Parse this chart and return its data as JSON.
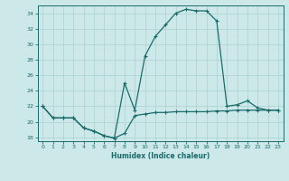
{
  "xlabel": "Humidex (Indice chaleur)",
  "bg_color": "#cce8e8",
  "grid_color": "#b0d4d4",
  "line_color": "#1a6b6b",
  "xlim": [
    -0.5,
    23.5
  ],
  "ylim": [
    17.5,
    35.0
  ],
  "yticks": [
    18,
    20,
    22,
    24,
    26,
    28,
    30,
    32,
    34
  ],
  "xticks": [
    0,
    1,
    2,
    3,
    4,
    5,
    6,
    7,
    8,
    9,
    10,
    11,
    12,
    13,
    14,
    15,
    16,
    17,
    18,
    19,
    20,
    21,
    22,
    23
  ],
  "line1_x": [
    0,
    1,
    2,
    3,
    4,
    5,
    6,
    7,
    8,
    9,
    10,
    11,
    12,
    13,
    14,
    15,
    16,
    17,
    18,
    19,
    20,
    21,
    22,
    23
  ],
  "line1_y": [
    22,
    20.5,
    20.5,
    20.5,
    19.2,
    18.8,
    18.2,
    17.9,
    18.5,
    20.8,
    21.0,
    21.2,
    21.2,
    21.3,
    21.3,
    21.3,
    21.3,
    21.4,
    21.4,
    21.5,
    21.5,
    21.5,
    21.5,
    21.5
  ],
  "line2_x": [
    0,
    1,
    2,
    3,
    4,
    5,
    6,
    7,
    8,
    9,
    10,
    11,
    12,
    13,
    14,
    15,
    16,
    17,
    18,
    19,
    20,
    21,
    22,
    23
  ],
  "line2_y": [
    22,
    20.5,
    20.5,
    20.5,
    19.2,
    18.8,
    18.2,
    17.9,
    25.0,
    21.5,
    28.5,
    31.0,
    32.5,
    34.0,
    34.5,
    34.3,
    34.3,
    33.0,
    22.0,
    22.2,
    22.7,
    21.8,
    21.5,
    21.5
  ]
}
